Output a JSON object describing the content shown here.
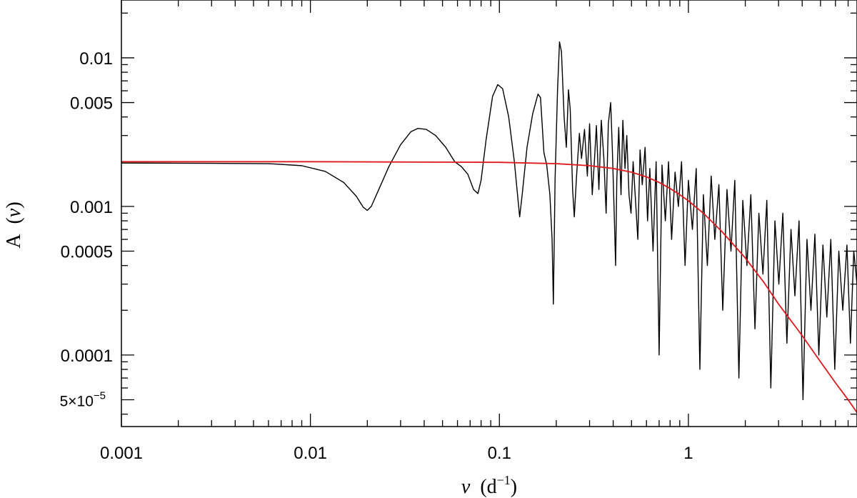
{
  "chart_data": {
    "type": "line",
    "title": "",
    "xlabel": {
      "symbol": "ν",
      "open": "(d",
      "exponent": "−1",
      "close": ")"
    },
    "ylabel": {
      "text": "A",
      "open": "(",
      "symbol": "ν",
      "close": ")"
    },
    "xscale": "log",
    "yscale": "log",
    "xlim": [
      0.001,
      7.8
    ],
    "ylim": [
      3.3e-05,
      0.0245
    ],
    "grid": false,
    "legend": "none",
    "x_ticks": [
      {
        "value": 0.001,
        "label": "0.001"
      },
      {
        "value": 0.01,
        "label": "0.01"
      },
      {
        "value": 0.1,
        "label": "0.1"
      },
      {
        "value": 1,
        "label": "1"
      }
    ],
    "y_ticks": [
      {
        "value": 0.01,
        "label": "0.01"
      },
      {
        "value": 0.005,
        "label": "0.005"
      },
      {
        "value": 0.001,
        "label": "0.001"
      },
      {
        "value": 0.0005,
        "label": "0.0005"
      },
      {
        "value": 0.0001,
        "label": "0.0001"
      },
      {
        "value": 5e-05,
        "label": "5×10",
        "label_exp": "−5"
      }
    ],
    "series": [
      {
        "color": "#000000",
        "style": "noisy-spectrum",
        "points": [
          [
            0.001,
            0.00196
          ],
          [
            0.003,
            0.00195
          ],
          [
            0.006,
            0.00194
          ],
          [
            0.009,
            0.00188
          ],
          [
            0.012,
            0.00172
          ],
          [
            0.015,
            0.00145
          ],
          [
            0.0175,
            0.00117
          ],
          [
            0.019,
            0.00099
          ],
          [
            0.02,
            0.00094
          ],
          [
            0.021,
            0.001
          ],
          [
            0.023,
            0.0013
          ],
          [
            0.026,
            0.00185
          ],
          [
            0.03,
            0.0026
          ],
          [
            0.034,
            0.00318
          ],
          [
            0.037,
            0.00335
          ],
          [
            0.041,
            0.0033
          ],
          [
            0.046,
            0.003
          ],
          [
            0.052,
            0.0025
          ],
          [
            0.058,
            0.002
          ],
          [
            0.063,
            0.00185
          ],
          [
            0.068,
            0.00165
          ],
          [
            0.073,
            0.0013
          ],
          [
            0.077,
            0.00122
          ],
          [
            0.08,
            0.0015
          ],
          [
            0.085,
            0.0028
          ],
          [
            0.092,
            0.0055
          ],
          [
            0.098,
            0.0066
          ],
          [
            0.104,
            0.0062
          ],
          [
            0.112,
            0.004
          ],
          [
            0.12,
            0.002
          ],
          [
            0.128,
            0.00085
          ],
          [
            0.132,
            0.0012
          ],
          [
            0.14,
            0.0025
          ],
          [
            0.15,
            0.0042
          ],
          [
            0.16,
            0.0057
          ],
          [
            0.165,
            0.0054
          ],
          [
            0.172,
            0.0023
          ],
          [
            0.178,
            0.0019
          ],
          [
            0.185,
            0.0012
          ],
          [
            0.19,
            0.0006
          ],
          [
            0.193,
            0.00022
          ],
          [
            0.197,
            0.0015
          ],
          [
            0.203,
            0.006
          ],
          [
            0.208,
            0.0128
          ],
          [
            0.213,
            0.011
          ],
          [
            0.22,
            0.004
          ],
          [
            0.226,
            0.0025
          ],
          [
            0.232,
            0.0061
          ],
          [
            0.237,
            0.0045
          ],
          [
            0.244,
            0.0013
          ],
          [
            0.249,
            0.00085
          ],
          [
            0.256,
            0.0016
          ],
          [
            0.265,
            0.0031
          ],
          [
            0.272,
            0.0021
          ],
          [
            0.282,
            0.0033
          ],
          [
            0.292,
            0.0016
          ],
          [
            0.3,
            0.0036
          ],
          [
            0.31,
            0.0012
          ],
          [
            0.318,
            0.002
          ],
          [
            0.326,
            0.0035
          ],
          [
            0.336,
            0.0013
          ],
          [
            0.346,
            0.0038
          ],
          [
            0.357,
            0.0021
          ],
          [
            0.367,
            0.0009
          ],
          [
            0.377,
            0.0036
          ],
          [
            0.388,
            0.005
          ],
          [
            0.396,
            0.0024
          ],
          [
            0.405,
            0.0009
          ],
          [
            0.412,
            0.0004
          ],
          [
            0.418,
            0.0015
          ],
          [
            0.428,
            0.0034
          ],
          [
            0.44,
            0.0012
          ],
          [
            0.45,
            0.0038
          ],
          [
            0.462,
            0.0018
          ],
          [
            0.472,
            0.003
          ],
          [
            0.485,
            0.0012
          ],
          [
            0.497,
            0.0009
          ],
          [
            0.51,
            0.002
          ],
          [
            0.525,
            0.0011
          ],
          [
            0.54,
            0.0006
          ],
          [
            0.555,
            0.0024
          ],
          [
            0.57,
            0.0014
          ],
          [
            0.59,
            0.0025
          ],
          [
            0.608,
            0.0008
          ],
          [
            0.625,
            0.0018
          ],
          [
            0.65,
            0.0005
          ],
          [
            0.675,
            0.002
          ],
          [
            0.7,
            0.0001
          ],
          [
            0.725,
            0.0019
          ],
          [
            0.755,
            0.0008
          ],
          [
            0.785,
            0.002
          ],
          [
            0.815,
            0.0006
          ],
          [
            0.85,
            0.0017
          ],
          [
            0.885,
            0.001
          ],
          [
            0.92,
            0.002
          ],
          [
            0.96,
            0.0004
          ],
          [
            1.0,
            0.0015
          ],
          [
            1.05,
            0.0007
          ],
          [
            1.1,
            0.0018
          ],
          [
            1.15,
            8e-05
          ],
          [
            1.2,
            0.0012
          ],
          [
            1.26,
            0.0004
          ],
          [
            1.32,
            0.0016
          ],
          [
            1.38,
            0.0006
          ],
          [
            1.45,
            0.0014
          ],
          [
            1.52,
            0.0002
          ],
          [
            1.6,
            0.0013
          ],
          [
            1.68,
            0.0005
          ],
          [
            1.76,
            0.0015
          ],
          [
            1.85,
            7e-05
          ],
          [
            1.94,
            0.0011
          ],
          [
            2.04,
            0.0004
          ],
          [
            2.14,
            0.0012
          ],
          [
            2.25,
            0.00015
          ],
          [
            2.36,
            0.0009
          ],
          [
            2.48,
            0.00035
          ],
          [
            2.6,
            0.0011
          ],
          [
            2.73,
            6e-05
          ],
          [
            2.87,
            0.0008
          ],
          [
            3.01,
            0.0003
          ],
          [
            3.16,
            0.0009
          ],
          [
            3.32,
            0.00012
          ],
          [
            3.49,
            0.0007
          ],
          [
            3.66,
            0.00025
          ],
          [
            3.85,
            0.0008
          ],
          [
            4.04,
            5e-05
          ],
          [
            4.24,
            0.0006
          ],
          [
            4.45,
            0.0002
          ],
          [
            4.67,
            0.00065
          ],
          [
            4.9,
            0.0001
          ],
          [
            5.15,
            0.00055
          ],
          [
            5.4,
            0.00018
          ],
          [
            5.67,
            0.0006
          ],
          [
            5.95,
            8e-05
          ],
          [
            6.25,
            0.0005
          ],
          [
            6.56,
            0.0002
          ],
          [
            6.9,
            0.00055
          ],
          [
            7.2,
            0.00012
          ],
          [
            7.5,
            0.0005
          ],
          [
            7.8,
            0.0003
          ]
        ]
      },
      {
        "color": "#e0191d",
        "style": "smooth-model",
        "points": [
          [
            0.001,
            0.002
          ],
          [
            0.01,
            0.002
          ],
          [
            0.1,
            0.00198
          ],
          [
            0.2,
            0.00194
          ],
          [
            0.3,
            0.00188
          ],
          [
            0.4,
            0.0018
          ],
          [
            0.5,
            0.0017
          ],
          [
            0.6,
            0.00158
          ],
          [
            0.7,
            0.00145
          ],
          [
            0.8,
            0.00132
          ],
          [
            0.9,
            0.0012
          ],
          [
            1.0,
            0.00109
          ],
          [
            1.2,
            0.0009
          ],
          [
            1.5,
            0.00068
          ],
          [
            2.0,
            0.00045
          ],
          [
            2.5,
            0.00031
          ],
          [
            3.0,
            0.00022
          ],
          [
            4.0,
            0.000135
          ],
          [
            5.0,
            9e-05
          ],
          [
            6.0,
            6.5e-05
          ],
          [
            7.0,
            5e-05
          ],
          [
            7.8,
            4.1e-05
          ]
        ]
      }
    ]
  }
}
